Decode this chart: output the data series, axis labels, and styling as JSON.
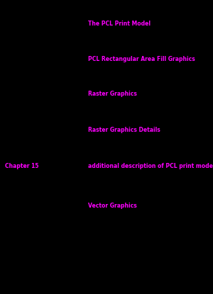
{
  "bg_color": "#000000",
  "text_color": "#FF00FF",
  "fig_width": 3.0,
  "fig_height": 4.15,
  "dpi": 100,
  "fontsize": 5.5,
  "fontfamily": "DejaVu Sans",
  "entries": [
    {
      "chapter_text": null,
      "chapter_fx": null,
      "chapter_fy": null,
      "title_text": "The PCL Print Model",
      "title_fx": 0.415,
      "title_fy": 0.92
    },
    {
      "chapter_text": null,
      "chapter_fx": null,
      "chapter_fy": null,
      "title_text": "PCL Rectangular Area Fill Graphics",
      "title_fx": 0.415,
      "title_fy": 0.8
    },
    {
      "chapter_text": null,
      "chapter_fx": null,
      "chapter_fy": null,
      "title_text": "Raster Graphics",
      "title_fx": 0.415,
      "title_fy": 0.68
    },
    {
      "chapter_text": null,
      "chapter_fx": null,
      "chapter_fy": null,
      "title_text": "Raster Graphics Details",
      "title_fx": 0.415,
      "title_fy": 0.558
    },
    {
      "chapter_text": "Chapter 15",
      "chapter_fx": 0.022,
      "chapter_fy": 0.435,
      "title_text": "additional description of PCL print model",
      "title_fx": 0.415,
      "title_fy": 0.435
    },
    {
      "chapter_text": null,
      "chapter_fx": null,
      "chapter_fy": null,
      "title_text": "Vector Graphics",
      "title_fx": 0.415,
      "title_fy": 0.3
    }
  ]
}
